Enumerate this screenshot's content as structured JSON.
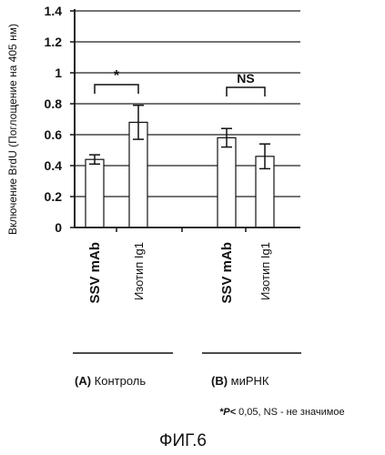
{
  "chart_data": {
    "type": "bar",
    "ylabel": "Включение BrdU (Поглощение на 405 нм)",
    "ylim": [
      0,
      1.4
    ],
    "yticks": [
      "0",
      "0.2",
      "0.4",
      "0.6",
      "0.8",
      "1",
      "1.2",
      "1.4"
    ],
    "grid": true,
    "categories": [
      "SSV mAb",
      "Изотип Ig1",
      "SSV mAb",
      "Изотип Ig1"
    ],
    "category_bold": [
      true,
      false,
      true,
      false
    ],
    "groups": [
      {
        "letter": "(A)",
        "name": "Контроль",
        "categories": [
          0,
          1
        ]
      },
      {
        "letter": "(B)",
        "name": "миРНК",
        "categories": [
          2,
          3
        ]
      }
    ],
    "values": [
      0.44,
      0.68,
      0.58,
      0.46
    ],
    "errors": [
      0.03,
      0.11,
      0.06,
      0.08
    ],
    "significance": [
      {
        "pair": [
          0,
          1
        ],
        "label": "*"
      },
      {
        "pair": [
          2,
          3
        ],
        "label": "NS"
      }
    ],
    "bar_color": "#ffffff",
    "line_color": "#111111"
  },
  "footnote": {
    "marker": "*P<",
    "text": " 0,05, NS - не значимое"
  },
  "figure_label": "ФИГ.6"
}
